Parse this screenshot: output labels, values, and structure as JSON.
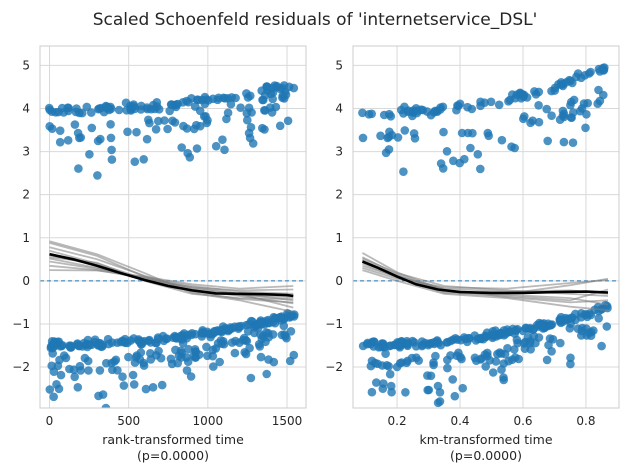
{
  "chart_data": {
    "title": "Scaled Schoenfeld residuals of 'internetservice_DSL'",
    "colors": {
      "points": "#1f77b4",
      "lowess": "#000000",
      "bootstrap": "#808080",
      "zero_line": "#1f77b4",
      "grid": "#d9d9d9",
      "frame": "#cccccc"
    },
    "panels": [
      {
        "type": "scatter",
        "xlabel": "rank-transformed time",
        "xlabel_sub": "(p=0.0000)",
        "xlim": [
          -60,
          1620
        ],
        "ylim": [
          -2.95,
          5.45
        ],
        "xticks": [
          0,
          500,
          1000,
          1500
        ],
        "yticks": [
          -2,
          -1,
          0,
          1,
          2,
          3,
          4,
          5
        ],
        "grid": true,
        "lowess_fit": [
          [
            0,
            0.62
          ],
          [
            150,
            0.5
          ],
          [
            300,
            0.35
          ],
          [
            450,
            0.18
          ],
          [
            600,
            0.02
          ],
          [
            750,
            -0.12
          ],
          [
            900,
            -0.22
          ],
          [
            1050,
            -0.29
          ],
          [
            1200,
            -0.3
          ],
          [
            1350,
            -0.31
          ],
          [
            1500,
            -0.33
          ],
          [
            1540,
            -0.35
          ]
        ],
        "bootstrap_fits": [
          [
            [
              0,
              0.88
            ],
            [
              300,
              0.58
            ],
            [
              600,
              0.1
            ],
            [
              900,
              -0.25
            ],
            [
              1200,
              -0.42
            ],
            [
              1540,
              -0.5
            ]
          ],
          [
            [
              0,
              0.78
            ],
            [
              300,
              0.5
            ],
            [
              600,
              0.12
            ],
            [
              900,
              -0.2
            ],
            [
              1200,
              -0.35
            ],
            [
              1540,
              -0.52
            ]
          ],
          [
            [
              0,
              0.7
            ],
            [
              300,
              0.4
            ],
            [
              600,
              0.05
            ],
            [
              900,
              -0.18
            ],
            [
              1200,
              -0.3
            ],
            [
              1540,
              -0.45
            ]
          ],
          [
            [
              0,
              0.6
            ],
            [
              300,
              0.36
            ],
            [
              600,
              0.02
            ],
            [
              900,
              -0.22
            ],
            [
              1200,
              -0.33
            ],
            [
              1540,
              -0.38
            ]
          ],
          [
            [
              0,
              0.52
            ],
            [
              300,
              0.3
            ],
            [
              600,
              0.04
            ],
            [
              900,
              -0.15
            ],
            [
              1200,
              -0.22
            ],
            [
              1540,
              -0.2
            ]
          ],
          [
            [
              0,
              0.45
            ],
            [
              300,
              0.28
            ],
            [
              600,
              0.08
            ],
            [
              900,
              -0.12
            ],
            [
              1200,
              -0.25
            ],
            [
              1540,
              -0.3
            ]
          ],
          [
            [
              0,
              0.35
            ],
            [
              300,
              0.25
            ],
            [
              600,
              0.06
            ],
            [
              900,
              -0.15
            ],
            [
              1200,
              -0.3
            ],
            [
              1540,
              -0.62
            ]
          ],
          [
            [
              0,
              0.25
            ],
            [
              300,
              0.24
            ],
            [
              600,
              0.1
            ],
            [
              900,
              -0.08
            ],
            [
              1200,
              -0.18
            ],
            [
              1540,
              -0.12
            ]
          ],
          [
            [
              0,
              0.92
            ],
            [
              300,
              0.62
            ],
            [
              600,
              0.18
            ],
            [
              900,
              -0.28
            ],
            [
              1200,
              -0.45
            ],
            [
              1540,
              -0.72
            ]
          ],
          [
            [
              0,
              0.55
            ],
            [
              300,
              0.42
            ],
            [
              600,
              0.0
            ],
            [
              900,
              -0.3
            ],
            [
              1200,
              -0.4
            ],
            [
              1540,
              -0.42
            ]
          ]
        ],
        "point_bands": [
          {
            "y0": 3.95,
            "y1": 4.55,
            "spread": 0.1,
            "count": 95
          },
          {
            "y0": 3.4,
            "y1": 4.3,
            "spread": 0.22,
            "count": 55
          },
          {
            "y0": 2.7,
            "y1": 3.7,
            "spread": 0.3,
            "count": 22
          },
          {
            "y0": -1.48,
            "y1": -0.78,
            "spread": 0.08,
            "count": 170
          },
          {
            "y0": -1.95,
            "y1": -1.05,
            "spread": 0.22,
            "count": 85
          },
          {
            "y0": -2.45,
            "y1": -1.5,
            "spread": 0.4,
            "count": 35
          }
        ]
      },
      {
        "type": "scatter",
        "xlabel": "km-transformed time",
        "xlabel_sub": "(p=0.0000)",
        "xlim": [
          0.06,
          0.905
        ],
        "ylim": [
          -2.95,
          5.45
        ],
        "xticks": [
          0.2,
          0.4,
          0.6,
          0.8
        ],
        "yticks": [
          -2,
          -1,
          0,
          1,
          2,
          3,
          4,
          5
        ],
        "grid": true,
        "lowess_fit": [
          [
            0.09,
            0.45
          ],
          [
            0.14,
            0.3
          ],
          [
            0.2,
            0.1
          ],
          [
            0.26,
            -0.08
          ],
          [
            0.33,
            -0.2
          ],
          [
            0.4,
            -0.26
          ],
          [
            0.5,
            -0.28
          ],
          [
            0.6,
            -0.28
          ],
          [
            0.7,
            -0.26
          ],
          [
            0.8,
            -0.25
          ],
          [
            0.87,
            -0.27
          ]
        ],
        "bootstrap_fits": [
          [
            [
              0.09,
              0.65
            ],
            [
              0.2,
              0.2
            ],
            [
              0.35,
              -0.22
            ],
            [
              0.55,
              -0.32
            ],
            [
              0.75,
              -0.4
            ],
            [
              0.87,
              -0.55
            ]
          ],
          [
            [
              0.09,
              0.55
            ],
            [
              0.2,
              0.15
            ],
            [
              0.35,
              -0.25
            ],
            [
              0.55,
              -0.3
            ],
            [
              0.75,
              -0.1
            ],
            [
              0.87,
              0.05
            ]
          ],
          [
            [
              0.09,
              0.48
            ],
            [
              0.2,
              0.12
            ],
            [
              0.35,
              -0.18
            ],
            [
              0.55,
              -0.25
            ],
            [
              0.75,
              -0.22
            ],
            [
              0.87,
              -0.3
            ]
          ],
          [
            [
              0.09,
              0.4
            ],
            [
              0.2,
              0.08
            ],
            [
              0.35,
              -0.28
            ],
            [
              0.55,
              -0.35
            ],
            [
              0.75,
              -0.45
            ],
            [
              0.87,
              -0.2
            ]
          ],
          [
            [
              0.09,
              0.3
            ],
            [
              0.2,
              0.05
            ],
            [
              0.35,
              -0.15
            ],
            [
              0.55,
              -0.18
            ],
            [
              0.75,
              -0.05
            ],
            [
              0.87,
              0.02
            ]
          ],
          [
            [
              0.09,
              0.25
            ],
            [
              0.2,
              0.0
            ],
            [
              0.35,
              -0.3
            ],
            [
              0.55,
              -0.4
            ],
            [
              0.75,
              -0.6
            ],
            [
              0.87,
              -0.68
            ]
          ],
          [
            [
              0.09,
              0.52
            ],
            [
              0.2,
              0.18
            ],
            [
              0.35,
              -0.12
            ],
            [
              0.55,
              -0.22
            ],
            [
              0.75,
              -0.3
            ],
            [
              0.87,
              -0.35
            ]
          ],
          [
            [
              0.09,
              0.35
            ],
            [
              0.2,
              0.1
            ],
            [
              0.35,
              -0.2
            ],
            [
              0.55,
              -0.38
            ],
            [
              0.75,
              -0.5
            ],
            [
              0.87,
              -0.45
            ]
          ]
        ],
        "point_bands": [
          {
            "y0": 3.9,
            "y1": 4.95,
            "spread": 0.1,
            "count": 80
          },
          {
            "y0": 3.3,
            "y1": 4.3,
            "spread": 0.22,
            "count": 45
          },
          {
            "y0": 2.7,
            "y1": 3.6,
            "spread": 0.3,
            "count": 18
          },
          {
            "y0": -1.48,
            "y1": -0.6,
            "spread": 0.08,
            "count": 150
          },
          {
            "y0": -1.95,
            "y1": -0.95,
            "spread": 0.22,
            "count": 75
          },
          {
            "y0": -2.5,
            "y1": -1.4,
            "spread": 0.4,
            "count": 30
          }
        ]
      }
    ]
  }
}
